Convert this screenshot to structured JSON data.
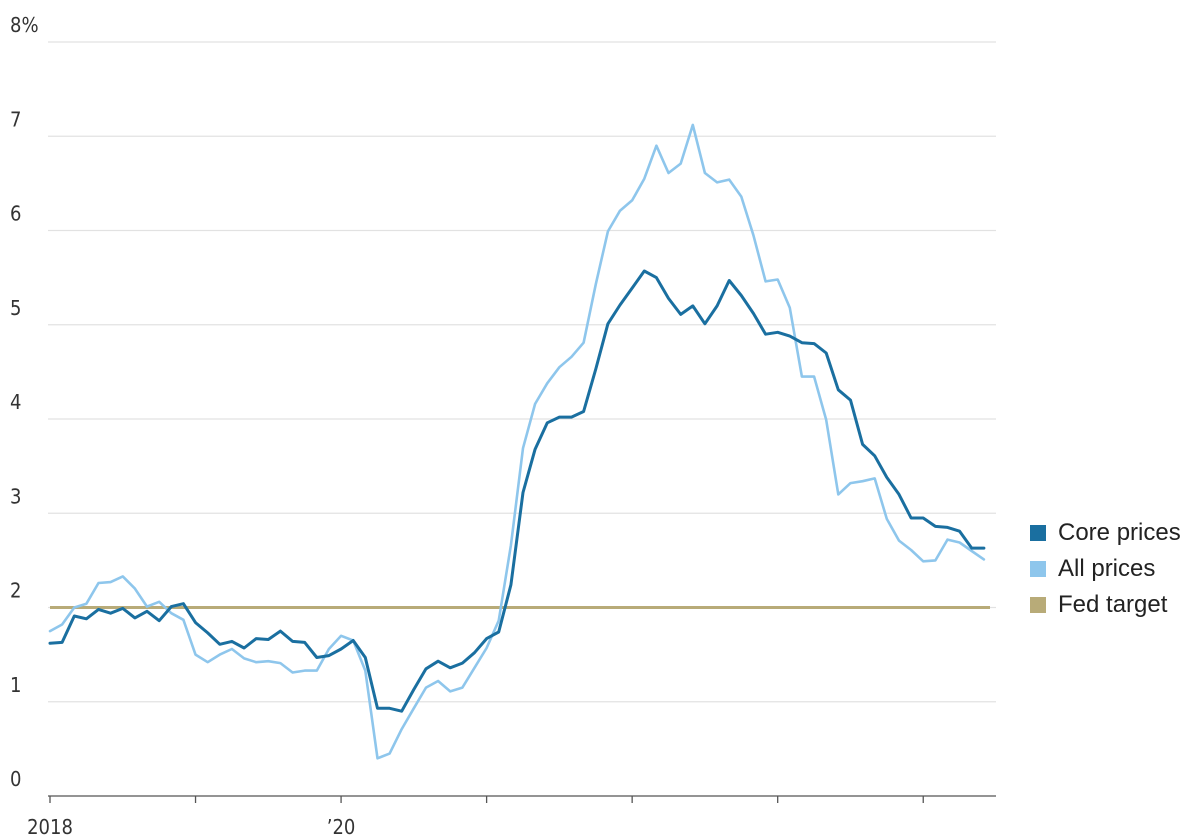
{
  "chart_data": {
    "type": "line",
    "y_unit_suffix": "%",
    "ylim": [
      0,
      8
    ],
    "y_ticks": [
      0,
      1,
      2,
      3,
      4,
      5,
      6,
      7,
      8
    ],
    "y_tick_labels": [
      "0",
      "1",
      "2",
      "3",
      "4",
      "5",
      "6",
      "7",
      "8%"
    ],
    "x_range": [
      "2018-01",
      "2024-06"
    ],
    "x_tick_labels": [
      {
        "x": "2018-01",
        "label": "2018"
      },
      {
        "x": "2020-01",
        "label": "’20"
      }
    ],
    "x_minor_ticks": [
      "2018-01",
      "2019-01",
      "2020-01",
      "2021-01",
      "2022-01",
      "2023-01",
      "2024-01"
    ],
    "grid": "horizontal",
    "legend_position": "right",
    "series": [
      {
        "name": "Core prices",
        "color": "#1a6fa0",
        "start": "2018-01",
        "values": [
          1.62,
          1.63,
          1.91,
          1.88,
          1.98,
          1.94,
          1.99,
          1.89,
          1.96,
          1.86,
          2.01,
          2.04,
          1.84,
          1.73,
          1.61,
          1.64,
          1.57,
          1.67,
          1.66,
          1.75,
          1.64,
          1.63,
          1.47,
          1.49,
          1.56,
          1.65,
          1.47,
          0.93,
          0.93,
          0.9,
          1.13,
          1.35,
          1.43,
          1.36,
          1.41,
          1.52,
          1.67,
          1.74,
          2.24,
          3.22,
          3.68,
          3.96,
          4.02,
          4.02,
          4.08,
          4.53,
          5.01,
          5.21,
          5.39,
          5.57,
          5.5,
          5.28,
          5.11,
          5.2,
          5.01,
          5.2,
          5.47,
          5.31,
          5.12,
          4.9,
          4.92,
          4.88,
          4.81,
          4.8,
          4.7,
          4.31,
          4.2,
          3.73,
          3.61,
          3.38,
          3.2,
          2.95,
          2.95,
          2.86,
          2.85,
          2.81,
          2.63,
          2.63
        ]
      },
      {
        "name": "All prices",
        "color": "#8ec6ec",
        "start": "2018-01",
        "values": [
          1.75,
          1.82,
          2.0,
          2.04,
          2.26,
          2.27,
          2.33,
          2.2,
          2.01,
          2.06,
          1.94,
          1.87,
          1.5,
          1.42,
          1.5,
          1.56,
          1.46,
          1.42,
          1.43,
          1.41,
          1.31,
          1.33,
          1.33,
          1.56,
          1.7,
          1.65,
          1.33,
          0.4,
          0.45,
          0.71,
          0.93,
          1.15,
          1.22,
          1.11,
          1.15,
          1.36,
          1.57,
          1.86,
          2.66,
          3.69,
          4.16,
          4.38,
          4.55,
          4.66,
          4.81,
          5.43,
          5.99,
          6.21,
          6.32,
          6.55,
          6.9,
          6.61,
          6.71,
          7.12,
          6.61,
          6.51,
          6.54,
          6.36,
          5.95,
          5.46,
          5.48,
          5.18,
          4.45,
          4.45,
          3.99,
          3.2,
          3.32,
          3.34,
          3.37,
          2.94,
          2.71,
          2.61,
          2.49,
          2.5,
          2.72,
          2.69,
          2.6,
          2.51
        ]
      },
      {
        "name": "Fed target",
        "color": "#b8ab78",
        "constant": 2.0
      }
    ]
  }
}
